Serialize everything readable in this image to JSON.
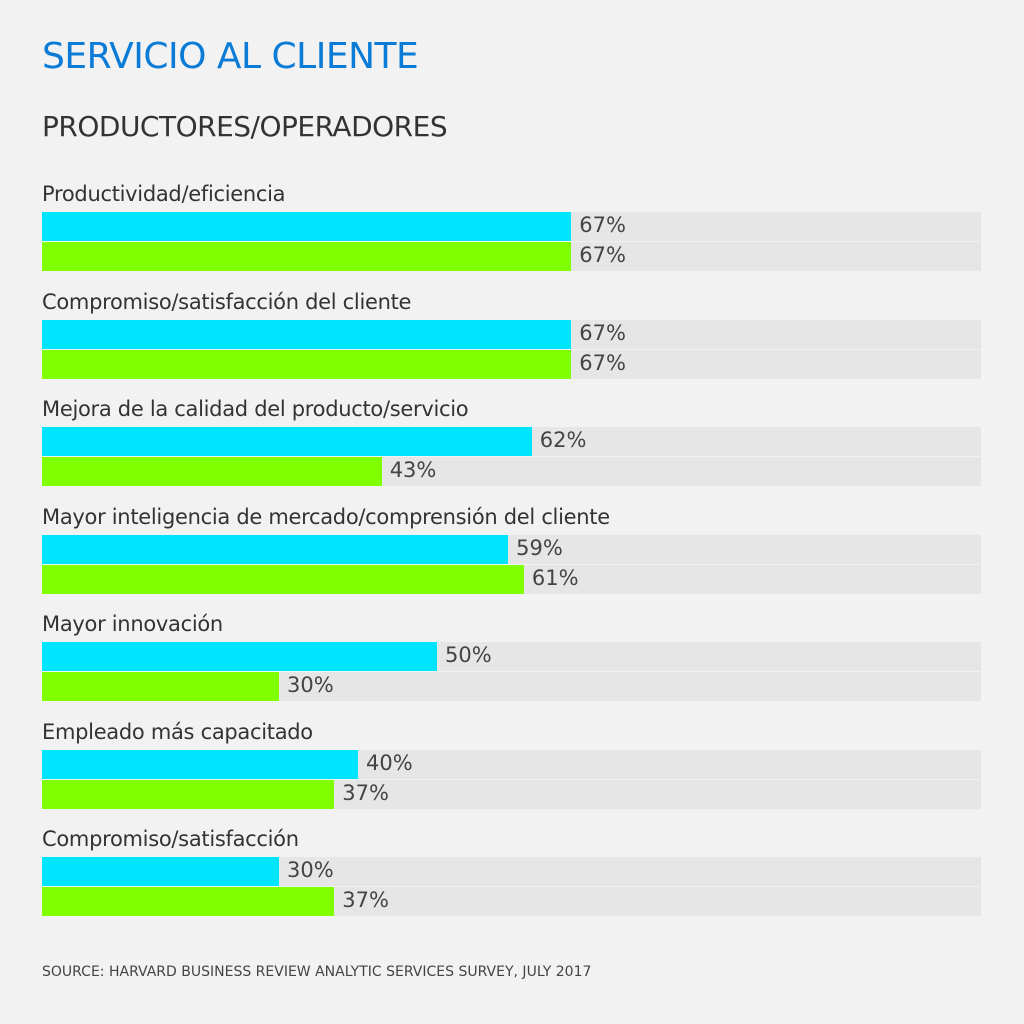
{
  "chart_data": {
    "type": "bar",
    "orientation": "horizontal",
    "title": "SERVICIO AL CLIENTE",
    "subtitle": "PRODUCTORES/OPERADORES",
    "categories": [
      "Productividad/eficiencia",
      "Compromiso/satisfacción del cliente",
      "Mejora de la calidad del producto/servicio",
      "Mayor inteligencia de mercado/comprensión del cliente",
      "Mayor innovación",
      "Empleado más capacitado",
      "Compromiso/satisfacción"
    ],
    "series": [
      {
        "values": [
          67,
          67,
          62,
          59,
          50,
          40,
          30
        ],
        "color": "#00e5ff"
      },
      {
        "values": [
          67,
          67,
          43,
          61,
          30,
          37,
          37
        ],
        "color": "#80ff00"
      }
    ],
    "value_suffix": "%",
    "grid": false,
    "legend": "none",
    "track_color": "#e6e6e6",
    "source": "SOURCE: HARVARD BUSINESS REVIEW ANALYTIC SERVICES SURVEY, JULY 2017"
  }
}
